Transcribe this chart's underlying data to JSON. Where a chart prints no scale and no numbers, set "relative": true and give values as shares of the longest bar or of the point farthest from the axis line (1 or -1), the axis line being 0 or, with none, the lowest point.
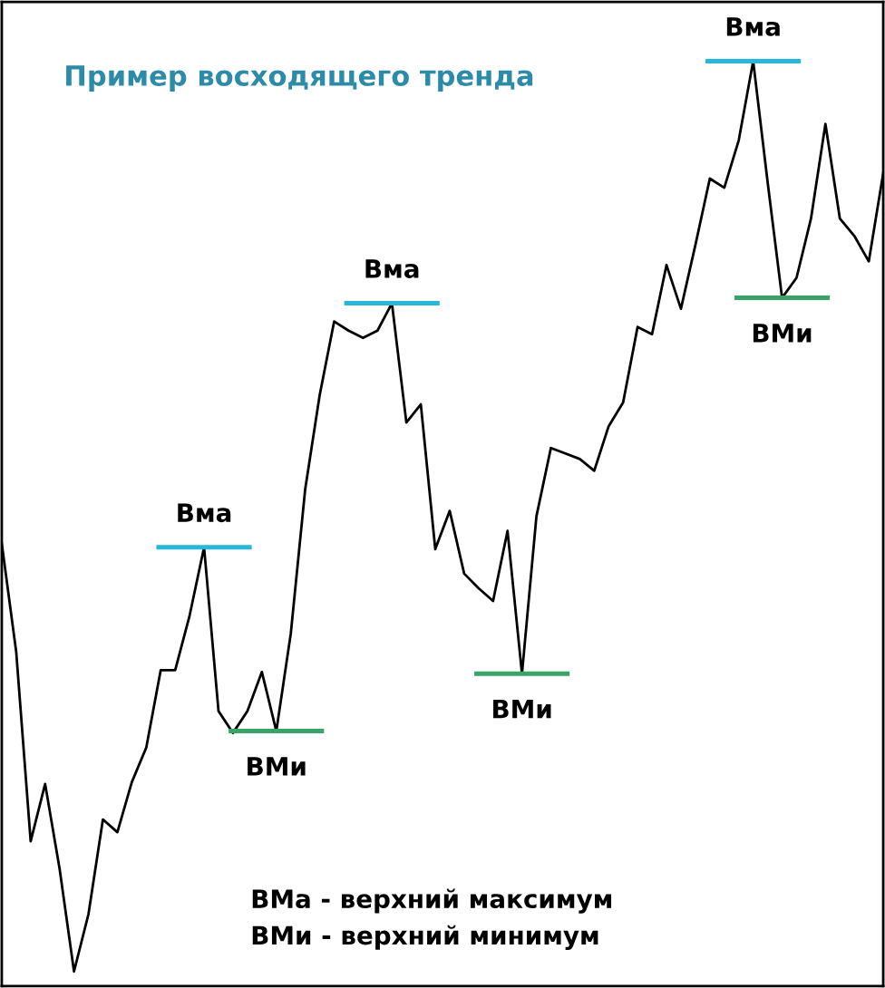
{
  "chart_data": {
    "type": "line",
    "title": "Пример восходящего тренда",
    "relative": true,
    "marker": "none",
    "line_style": "solid",
    "categories": [
      null,
      null,
      null,
      null,
      null,
      null,
      null,
      null,
      null,
      null,
      null,
      null,
      null,
      null,
      null,
      null,
      null,
      null,
      null,
      null,
      null,
      null,
      null,
      null,
      null,
      null,
      null,
      null,
      null,
      null,
      null,
      null,
      null,
      null,
      null,
      null,
      null,
      null,
      null,
      null,
      null,
      null,
      null,
      null,
      null,
      null,
      null,
      null,
      null,
      null,
      null,
      null,
      null,
      null,
      null,
      null,
      null,
      null,
      null,
      null,
      null,
      null
    ],
    "series": [
      {
        "color": "#000000",
        "values": [
          0.47,
          0.351,
          0.143,
          0.206,
          0.113,
          0,
          0.063,
          0.167,
          0.153,
          0.208,
          0.246,
          0.331,
          0.331,
          0.391,
          0.466,
          0.286,
          0.262,
          0.286,
          0.329,
          0.264,
          0.371,
          0.53,
          0.633,
          0.714,
          0.704,
          0.696,
          0.704,
          0.734,
          0.603,
          0.623,
          0.464,
          0.506,
          0.437,
          0.421,
          0.407,
          0.484,
          0.327,
          0.5,
          0.575,
          0.569,
          0.563,
          0.55,
          0.599,
          0.625,
          0.708,
          0.7,
          0.776,
          0.728,
          0.798,
          0.871,
          0.861,
          0.913,
          1,
          0.867,
          0.74,
          0.762,
          0.827,
          0.931,
          0.827,
          0.808,
          0.78,
          0.877
        ]
      }
    ],
    "ref_lines": [
      {
        "axis": "y",
        "value": 0.466,
        "label": "Вма",
        "color": "#29b6d8"
      },
      {
        "axis": "y",
        "value": 0.264,
        "label": "ВМи",
        "color": "#3aa36a"
      },
      {
        "axis": "y",
        "value": 0.734,
        "label": "Вма",
        "color": "#29b6d8"
      },
      {
        "axis": "y",
        "value": 0.327,
        "label": "ВМи",
        "color": "#3aa36a"
      },
      {
        "axis": "y",
        "value": 1,
        "label": "Вма",
        "color": "#29b6d8"
      },
      {
        "axis": "y",
        "value": 0.74,
        "label": "ВМи",
        "color": "#3aa36a"
      }
    ],
    "annotations": [
      "ВМа - верхний максимум",
      "ВМи - верхний минимум"
    ]
  }
}
